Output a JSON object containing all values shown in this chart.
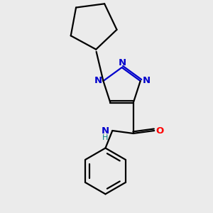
{
  "background_color": "#ebebeb",
  "bond_color": "#000000",
  "nitrogen_color": "#0000cc",
  "oxygen_color": "#ff0000",
  "nh_color": "#008080",
  "line_width": 1.6,
  "figsize": [
    3.0,
    3.0
  ],
  "dpi": 100,
  "xlim": [
    0.0,
    3.0
  ],
  "ylim": [
    0.0,
    3.0
  ]
}
